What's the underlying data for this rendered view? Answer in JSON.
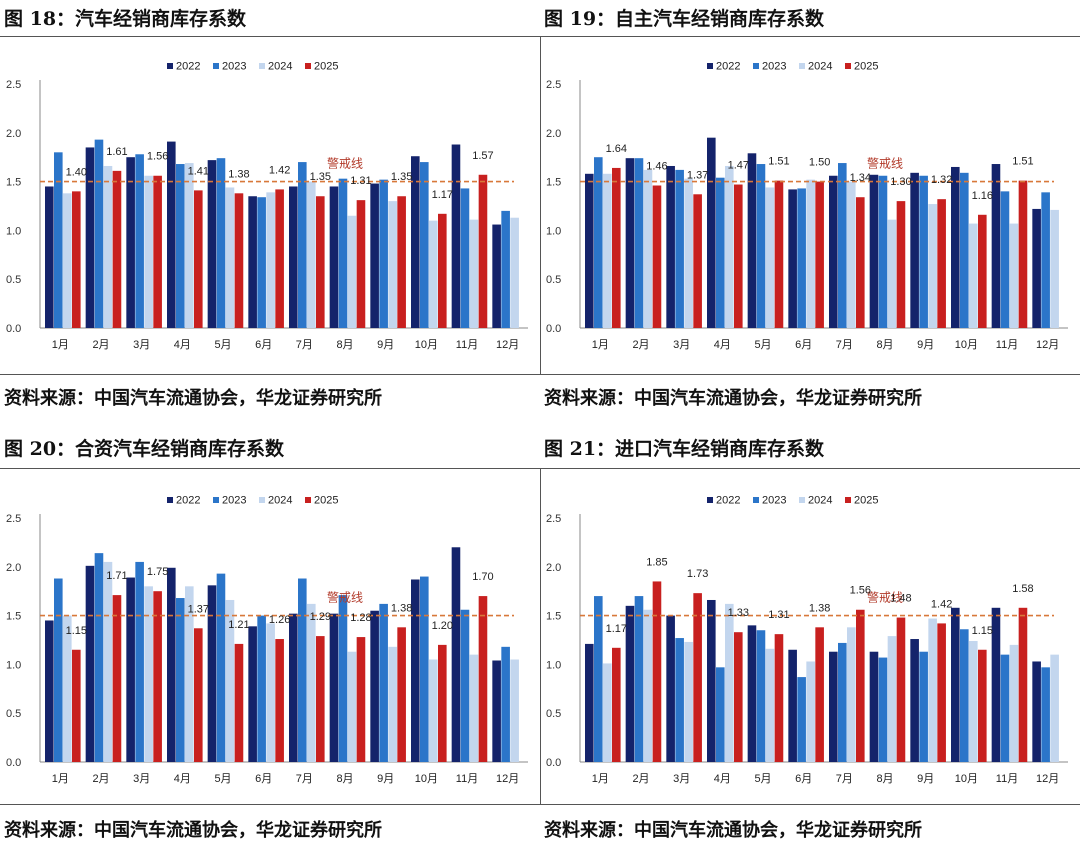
{
  "panels": [
    {
      "title": "图 18：汽车经销商库存系数",
      "source": "资料来源：中国汽车流通协会，华龙证券研究所",
      "chart_data": {
        "type": "bar",
        "categories": [
          "1月",
          "2月",
          "3月",
          "4月",
          "5月",
          "6月",
          "7月",
          "8月",
          "9月",
          "10月",
          "11月",
          "12月"
        ],
        "series": [
          {
            "name": "2022",
            "values": [
              1.45,
              1.85,
              1.75,
              1.91,
              1.72,
              1.35,
              1.45,
              1.45,
              1.48,
              1.76,
              1.88,
              1.06
            ]
          },
          {
            "name": "2023",
            "values": [
              1.8,
              1.93,
              1.78,
              1.68,
              1.74,
              1.34,
              1.7,
              1.53,
              1.52,
              1.7,
              1.43,
              1.2
            ]
          },
          {
            "name": "2024",
            "values": [
              1.38,
              1.66,
              1.56,
              1.69,
              1.44,
              1.39,
              1.5,
              1.15,
              1.3,
              1.1,
              1.11,
              1.13
            ]
          },
          {
            "name": "2025",
            "values": [
              1.4,
              1.61,
              1.56,
              1.41,
              1.38,
              1.42,
              1.35,
              1.31,
              1.35,
              1.17,
              1.57,
              null
            ]
          }
        ],
        "data_labels": [
          "1.40",
          "1.61",
          "1.56",
          "1.41",
          "1.38",
          "1.42",
          "1.35",
          "1.31",
          "1.35",
          "1.17",
          "1.57"
        ],
        "yticks": [
          "0.0",
          "0.5",
          "1.0",
          "1.5",
          "2.0",
          "2.5"
        ],
        "ylim": [
          0,
          2.5
        ],
        "threshold": 1.5,
        "threshold_label": "警戒线",
        "legend_position": "top-center"
      }
    },
    {
      "title": "图 19：自主汽车经销商库存系数",
      "source": "资料来源：中国汽车流通协会，华龙证券研究所",
      "chart_data": {
        "type": "bar",
        "categories": [
          "1月",
          "2月",
          "3月",
          "4月",
          "5月",
          "6月",
          "7月",
          "8月",
          "9月",
          "10月",
          "11月",
          "12月"
        ],
        "series": [
          {
            "name": "2022",
            "values": [
              1.58,
              1.74,
              1.66,
              1.95,
              1.79,
              1.42,
              1.56,
              1.57,
              1.59,
              1.65,
              1.68,
              1.22
            ]
          },
          {
            "name": "2023",
            "values": [
              1.75,
              1.74,
              1.62,
              1.54,
              1.68,
              1.43,
              1.69,
              1.56,
              1.56,
              1.59,
              1.4,
              1.39
            ]
          },
          {
            "name": "2024",
            "values": [
              1.58,
              1.62,
              1.53,
              1.66,
              1.44,
              1.52,
              1.5,
              1.11,
              1.27,
              1.07,
              1.07,
              1.21
            ]
          },
          {
            "name": "2025",
            "values": [
              1.64,
              1.46,
              1.37,
              1.47,
              1.51,
              1.5,
              1.34,
              1.3,
              1.32,
              1.16,
              1.51,
              null
            ]
          }
        ],
        "data_labels": [
          "1.64",
          "1.46",
          "1.37",
          "1.47",
          "1.51",
          "1.50",
          "1.34",
          "1.30",
          "1.32",
          "1.16",
          "1.51"
        ],
        "yticks": [
          "0.0",
          "0.5",
          "1.0",
          "1.5",
          "2.0",
          "2.5"
        ],
        "ylim": [
          0,
          2.5
        ],
        "threshold": 1.5,
        "threshold_label": "警戒线",
        "legend_position": "top-center"
      }
    },
    {
      "title": "图 20：合资汽车经销商库存系数",
      "source": "资料来源：中国汽车流通协会，华龙证券研究所",
      "chart_data": {
        "type": "bar",
        "categories": [
          "1月",
          "2月",
          "3月",
          "4月",
          "5月",
          "6月",
          "7月",
          "8月",
          "9月",
          "10月",
          "11月",
          "12月"
        ],
        "series": [
          {
            "name": "2022",
            "values": [
              1.45,
              2.01,
              1.89,
              1.99,
              1.81,
              1.39,
              1.52,
              1.52,
              1.55,
              1.87,
              2.2,
              1.04
            ]
          },
          {
            "name": "2023",
            "values": [
              1.88,
              2.14,
              2.05,
              1.68,
              1.93,
              1.5,
              1.88,
              1.71,
              1.62,
              1.9,
              1.56,
              1.18
            ]
          },
          {
            "name": "2024",
            "values": [
              1.5,
              2.05,
              1.8,
              1.8,
              1.66,
              1.42,
              1.62,
              1.13,
              1.18,
              1.05,
              1.1,
              1.05
            ]
          },
          {
            "name": "2025",
            "values": [
              1.15,
              1.71,
              1.75,
              1.37,
              1.21,
              1.26,
              1.29,
              1.28,
              1.38,
              1.2,
              1.7,
              null
            ]
          }
        ],
        "data_labels": [
          "1.15",
          "1.71",
          "1.75",
          "1.37",
          "1.21",
          "1.26",
          "1.29",
          "1.28",
          "1.38",
          "1.20",
          "1.70"
        ],
        "yticks": [
          "0.0",
          "0.5",
          "1.0",
          "1.5",
          "2.0",
          "2.5"
        ],
        "ylim": [
          0,
          2.5
        ],
        "threshold": 1.5,
        "threshold_label": "警戒线",
        "legend_position": "top-center"
      }
    },
    {
      "title": "图 21：进口汽车经销商库存系数",
      "source": "资料来源：中国汽车流通协会，华龙证券研究所",
      "chart_data": {
        "type": "bar",
        "categories": [
          "1月",
          "2月",
          "3月",
          "4月",
          "5月",
          "6月",
          "7月",
          "8月",
          "9月",
          "10月",
          "11月",
          "12月"
        ],
        "series": [
          {
            "name": "2022",
            "values": [
              1.21,
              1.6,
              1.5,
              1.66,
              1.4,
              1.15,
              1.13,
              1.13,
              1.26,
              1.58,
              1.58,
              1.03
            ]
          },
          {
            "name": "2023",
            "values": [
              1.7,
              1.7,
              1.27,
              0.97,
              1.35,
              0.87,
              1.22,
              1.07,
              1.13,
              1.36,
              1.1,
              0.97
            ]
          },
          {
            "name": "2024",
            "values": [
              1.01,
              1.56,
              1.23,
              1.62,
              1.16,
              1.03,
              1.38,
              1.29,
              1.47,
              1.24,
              1.2,
              1.1
            ]
          },
          {
            "name": "2025",
            "values": [
              1.17,
              1.85,
              1.73,
              1.33,
              1.31,
              1.38,
              1.56,
              1.48,
              1.42,
              1.15,
              1.58,
              null
            ]
          }
        ],
        "data_labels": [
          "1.17",
          "1.85",
          "1.73",
          "1.33",
          "1.31",
          "1.38",
          "1.56",
          "1.48",
          "1.42",
          "1.15",
          "1.58"
        ],
        "yticks": [
          "0.0",
          "0.5",
          "1.0",
          "1.5",
          "2.0",
          "2.5"
        ],
        "ylim": [
          0,
          2.5
        ],
        "threshold": 1.5,
        "threshold_label": "警戒线",
        "legend_position": "top-center"
      }
    }
  ],
  "colors": {
    "s2022": "#14236b",
    "s2023": "#2b75c9",
    "s2024": "#c3d6ee",
    "s2025": "#c8201f",
    "threshold": "#d8783a",
    "threshold_label": "#b23a2a",
    "axis": "#888888"
  }
}
